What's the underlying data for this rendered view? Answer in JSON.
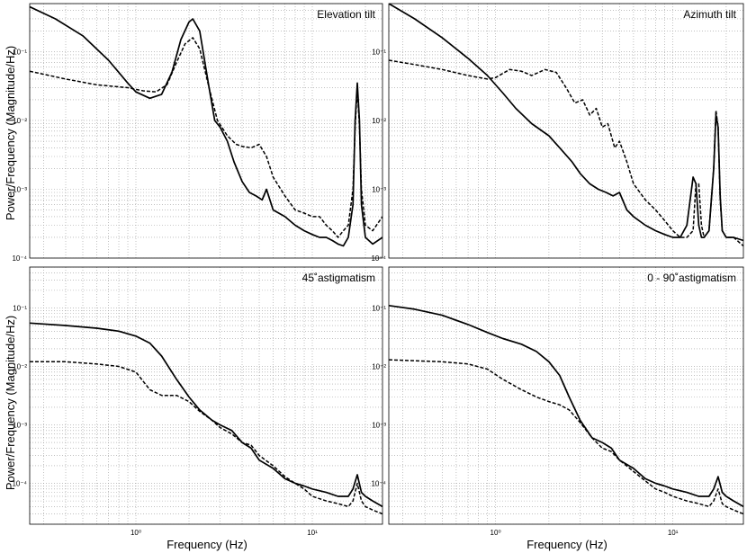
{
  "figure": {
    "ylabel": "Power/Frequency (Magnitude/Hz)",
    "xlabel": "Frequency (Hz)",
    "x_tick_labels": [
      "10⁰",
      "10¹"
    ],
    "y_tick_labels": [
      "10⁻⁴",
      "10⁻³",
      "10⁻²",
      "10⁻¹"
    ]
  },
  "chart_data": [
    {
      "type": "line",
      "title": "Elevation tilt",
      "xscale": "log",
      "yscale": "log",
      "xlim": [
        0.25,
        25
      ],
      "ylim": [
        0.0001,
        0.5
      ],
      "grid": true,
      "series": [
        {
          "style": "solid",
          "x": [
            0.25,
            0.35,
            0.5,
            0.7,
            0.9,
            1.0,
            1.2,
            1.4,
            1.6,
            1.8,
            2.0,
            2.1,
            2.3,
            2.6,
            2.8,
            3.0,
            3.3,
            3.6,
            4.0,
            4.4,
            4.8,
            5.2,
            5.5,
            6.0,
            7.0,
            8.0,
            9.0,
            10,
            11,
            12,
            13,
            14,
            15,
            16,
            17,
            17.5,
            18,
            18.5,
            19,
            20,
            22,
            25
          ],
          "y": [
            0.45,
            0.3,
            0.17,
            0.075,
            0.035,
            0.026,
            0.021,
            0.024,
            0.05,
            0.15,
            0.27,
            0.3,
            0.2,
            0.03,
            0.01,
            0.008,
            0.005,
            0.0025,
            0.0013,
            0.0009,
            0.0008,
            0.0007,
            0.001,
            0.0005,
            0.0004,
            0.0003,
            0.00025,
            0.00022,
            0.0002,
            0.0002,
            0.00018,
            0.00016,
            0.00015,
            0.0002,
            0.0006,
            0.01,
            0.035,
            0.01,
            0.0006,
            0.0002,
            0.00016,
            0.0002
          ]
        },
        {
          "style": "dashed",
          "x": [
            0.25,
            0.4,
            0.6,
            0.9,
            1.1,
            1.3,
            1.5,
            1.7,
            1.9,
            2.1,
            2.3,
            2.6,
            2.9,
            3.3,
            3.7,
            4.0,
            4.5,
            5.0,
            5.5,
            6.0,
            7.0,
            8.0,
            9.0,
            10,
            11,
            12,
            13,
            14,
            15,
            16,
            17,
            17.5,
            18,
            18.5,
            19,
            20,
            22,
            25
          ],
          "y": [
            0.052,
            0.04,
            0.033,
            0.03,
            0.027,
            0.026,
            0.033,
            0.07,
            0.13,
            0.16,
            0.11,
            0.03,
            0.01,
            0.006,
            0.0045,
            0.0042,
            0.004,
            0.0045,
            0.003,
            0.0015,
            0.0008,
            0.0005,
            0.00045,
            0.0004,
            0.0004,
            0.0003,
            0.00025,
            0.0002,
            0.00025,
            0.0003,
            0.001,
            0.008,
            0.03,
            0.008,
            0.001,
            0.0003,
            0.00025,
            0.0004
          ]
        }
      ]
    },
    {
      "type": "line",
      "title": "Azimuth tilt",
      "xscale": "log",
      "yscale": "log",
      "xlim": [
        0.25,
        25
      ],
      "ylim": [
        0.0001,
        0.5
      ],
      "grid": true,
      "series": [
        {
          "style": "solid",
          "x": [
            0.25,
            0.35,
            0.5,
            0.7,
            0.9,
            1.1,
            1.3,
            1.6,
            2.0,
            2.3,
            2.7,
            3.0,
            3.4,
            3.8,
            4.2,
            4.6,
            5.0,
            5.5,
            6.0,
            7.0,
            8.0,
            9.0,
            10,
            11,
            12,
            13,
            13.5,
            14,
            14.5,
            15,
            16,
            17,
            17.5,
            18,
            18.5,
            19,
            20,
            22,
            25
          ],
          "y": [
            0.5,
            0.3,
            0.16,
            0.08,
            0.045,
            0.025,
            0.015,
            0.009,
            0.006,
            0.004,
            0.0025,
            0.0017,
            0.0012,
            0.001,
            0.0009,
            0.0008,
            0.0009,
            0.0005,
            0.0004,
            0.0003,
            0.00025,
            0.00022,
            0.0002,
            0.0002,
            0.0003,
            0.0015,
            0.0012,
            0.0003,
            0.0002,
            0.0002,
            0.00025,
            0.002,
            0.012,
            0.008,
            0.0008,
            0.00025,
            0.0002,
            0.0002,
            0.00018
          ]
        },
        {
          "style": "dashed",
          "x": [
            0.25,
            0.35,
            0.5,
            0.7,
            0.9,
            1.0,
            1.2,
            1.4,
            1.6,
            1.9,
            2.2,
            2.5,
            2.8,
            3.1,
            3.4,
            3.7,
            4.0,
            4.3,
            4.7,
            5.0,
            5.5,
            6.0,
            7.0,
            8.0,
            9.0,
            10,
            11,
            12,
            13,
            13.5,
            14,
            14.5,
            15,
            16,
            17,
            17.5,
            18,
            18.5,
            19,
            20,
            22,
            25
          ],
          "y": [
            0.075,
            0.065,
            0.055,
            0.045,
            0.04,
            0.042,
            0.055,
            0.052,
            0.045,
            0.055,
            0.05,
            0.03,
            0.018,
            0.02,
            0.012,
            0.015,
            0.008,
            0.009,
            0.004,
            0.005,
            0.0025,
            0.0012,
            0.0007,
            0.0005,
            0.00035,
            0.00025,
            0.0002,
            0.0002,
            0.00025,
            0.0012,
            0.0012,
            0.0003,
            0.0002,
            0.00025,
            0.002,
            0.014,
            0.008,
            0.0007,
            0.00025,
            0.0002,
            0.0002,
            0.00015
          ]
        }
      ]
    },
    {
      "type": "line",
      "title": "45˚astigmatism",
      "xscale": "log",
      "yscale": "log",
      "xlim": [
        0.25,
        25
      ],
      "ylim": [
        2e-05,
        0.5
      ],
      "grid": true,
      "series": [
        {
          "style": "solid",
          "x": [
            0.25,
            0.4,
            0.6,
            0.8,
            1.0,
            1.2,
            1.4,
            1.7,
            2.0,
            2.3,
            2.7,
            3.0,
            3.5,
            4.0,
            4.5,
            5.0,
            6.0,
            7.0,
            8.0,
            9.0,
            10,
            12,
            14,
            16,
            17,
            18,
            19,
            20,
            22,
            25
          ],
          "y": [
            0.055,
            0.05,
            0.045,
            0.04,
            0.033,
            0.025,
            0.015,
            0.006,
            0.003,
            0.0018,
            0.0012,
            0.001,
            0.0008,
            0.0005,
            0.0004,
            0.00025,
            0.00018,
            0.00012,
            0.0001,
            9e-05,
            8e-05,
            7e-05,
            6e-05,
            6e-05,
            8e-05,
            0.00014,
            7e-05,
            6e-05,
            5e-05,
            4e-05
          ]
        },
        {
          "style": "dashed",
          "x": [
            0.25,
            0.4,
            0.6,
            0.8,
            1.0,
            1.2,
            1.4,
            1.7,
            2.0,
            2.3,
            2.7,
            3.0,
            3.5,
            4.0,
            4.5,
            5.0,
            6.0,
            7.0,
            8.0,
            9.0,
            10,
            12,
            14,
            16,
            17,
            18,
            19,
            20,
            22,
            25
          ],
          "y": [
            0.012,
            0.012,
            0.011,
            0.01,
            0.008,
            0.004,
            0.0032,
            0.0032,
            0.0025,
            0.0017,
            0.0012,
            0.0009,
            0.0007,
            0.0005,
            0.00045,
            0.0003,
            0.0002,
            0.00013,
            0.0001,
            8e-05,
            6e-05,
            5e-05,
            4.5e-05,
            4e-05,
            5e-05,
            0.0001,
            5e-05,
            4e-05,
            3.5e-05,
            3e-05
          ]
        }
      ]
    },
    {
      "type": "line",
      "title": "0 - 90˚astigmatism",
      "xscale": "log",
      "yscale": "log",
      "xlim": [
        0.25,
        25
      ],
      "ylim": [
        2e-05,
        0.5
      ],
      "grid": true,
      "series": [
        {
          "style": "solid",
          "x": [
            0.25,
            0.35,
            0.5,
            0.7,
            0.9,
            1.1,
            1.4,
            1.7,
            2.0,
            2.3,
            2.6,
            3.0,
            3.5,
            4.0,
            4.5,
            5.0,
            6.0,
            7.0,
            8.0,
            9.0,
            10,
            12,
            14,
            16,
            17,
            18,
            19,
            20,
            22,
            25
          ],
          "y": [
            0.11,
            0.095,
            0.075,
            0.052,
            0.038,
            0.03,
            0.024,
            0.018,
            0.012,
            0.007,
            0.003,
            0.0012,
            0.0006,
            0.0005,
            0.0004,
            0.00025,
            0.00018,
            0.00012,
            0.0001,
            9e-05,
            8e-05,
            7e-05,
            6e-05,
            6e-05,
            8e-05,
            0.00013,
            7e-05,
            6e-05,
            5e-05,
            4e-05
          ]
        },
        {
          "style": "dashed",
          "x": [
            0.25,
            0.35,
            0.5,
            0.7,
            0.9,
            1.1,
            1.4,
            1.7,
            2.0,
            2.3,
            2.6,
            3.0,
            3.5,
            4.0,
            4.5,
            5.0,
            6.0,
            7.0,
            8.0,
            9.0,
            10,
            12,
            14,
            16,
            17,
            18,
            19,
            20,
            22,
            25
          ],
          "y": [
            0.013,
            0.0125,
            0.012,
            0.011,
            0.009,
            0.006,
            0.004,
            0.003,
            0.0025,
            0.0022,
            0.0018,
            0.0011,
            0.0006,
            0.0004,
            0.00035,
            0.00025,
            0.00016,
            0.00011,
            8e-05,
            7e-05,
            6e-05,
            5e-05,
            4.5e-05,
            4e-05,
            5e-05,
            8e-05,
            4.5e-05,
            4e-05,
            3.5e-05,
            3e-05
          ]
        }
      ]
    }
  ]
}
